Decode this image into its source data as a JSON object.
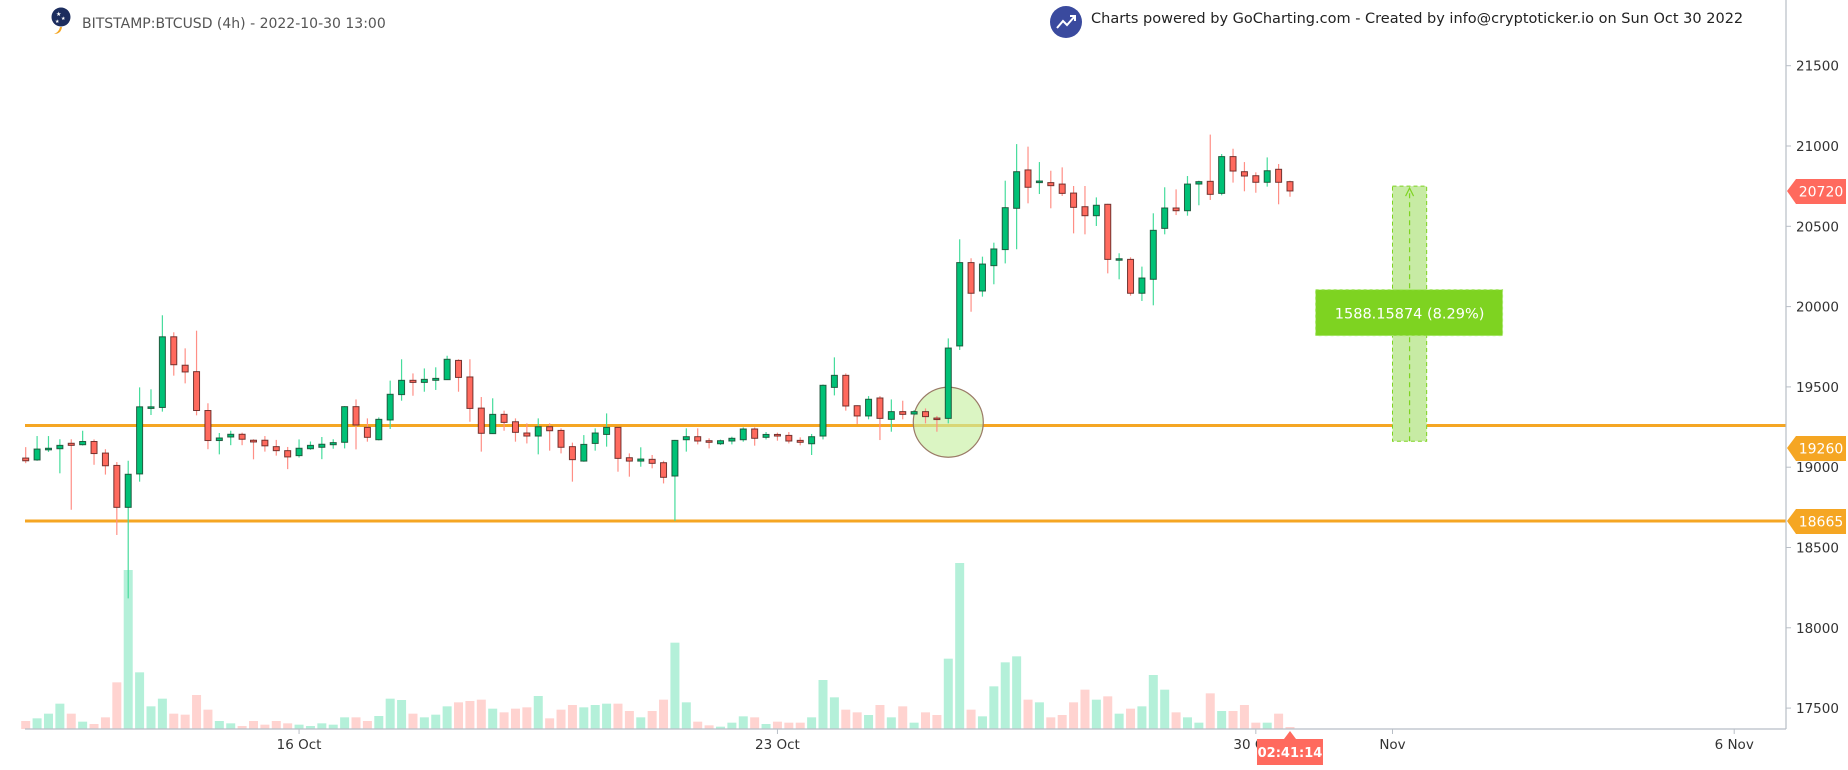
{
  "header": {
    "title": "BITSTAMP:BTCUSD (4h) - 2022-10-30 13:00",
    "credit": "Charts powered by GoCharting.com - Created by info@cryptoticker.io on Sun Oct 30 2022",
    "logo_icon": "cryptoticker-logo",
    "credit_icon": "gocharting-trend-icon"
  },
  "colors": {
    "up": "#00c176",
    "down": "#ff6a5e",
    "volume_up": "#b4f0d9",
    "volume_down": "#ffd3d0",
    "level_line": "#f5a623",
    "last_price": "#ff6a5e",
    "measure": "#7ed321",
    "highlight_circle": "#c8efa3"
  },
  "chart_data": {
    "type": "candlestick",
    "symbol": "BITSTAMP:BTCUSD",
    "interval": "4h",
    "ylim": [
      17350,
      21650
    ],
    "y_ticks": [
      17500,
      18000,
      18500,
      19000,
      19500,
      20000,
      20500,
      21000,
      21500
    ],
    "x_ticks": [
      {
        "label": "16 Oct",
        "date": "2022-10-16 00:00"
      },
      {
        "label": "23 Oct",
        "date": "2022-10-23 00:00"
      },
      {
        "label": "30 Oct",
        "date": "2022-10-30 00:00"
      },
      {
        "label": "Nov",
        "date": "2022-11-01 00:00"
      },
      {
        "label": "6 Nov",
        "date": "2022-11-06 00:00"
      }
    ],
    "columns": [
      "time",
      "open",
      "high",
      "low",
      "close",
      "volume_relative"
    ],
    "candles": [
      [
        "2022-10-12 00:00",
        19057,
        19125,
        19025,
        19040,
        24
      ],
      [
        "2022-10-12 04:00",
        19045,
        19194,
        19040,
        19113,
        32
      ],
      [
        "2022-10-12 08:00",
        19108,
        19194,
        19095,
        19118,
        46
      ],
      [
        "2022-10-12 12:00",
        19115,
        19174,
        18962,
        19136,
        76
      ],
      [
        "2022-10-12 16:00",
        19149,
        19174,
        18735,
        19136,
        46
      ],
      [
        "2022-10-12 20:00",
        19140,
        19227,
        19135,
        19160,
        22
      ],
      [
        "2022-10-13 00:00",
        19160,
        19173,
        19015,
        19085,
        15
      ],
      [
        "2022-10-13 04:00",
        19088,
        19112,
        18954,
        19009,
        35
      ],
      [
        "2022-10-13 08:00",
        19011,
        19032,
        18578,
        18750,
        140
      ],
      [
        "2022-10-13 12:00",
        18750,
        19040,
        18183,
        18956,
        477
      ],
      [
        "2022-10-13 16:00",
        18958,
        19497,
        18910,
        19376,
        170
      ],
      [
        "2022-10-13 20:00",
        19366,
        19485,
        19325,
        19376,
        68
      ],
      [
        "2022-10-14 00:00",
        19372,
        19946,
        19346,
        19812,
        91
      ],
      [
        "2022-10-14 04:00",
        19812,
        19840,
        19570,
        19638,
        46
      ],
      [
        "2022-10-14 08:00",
        19635,
        19740,
        19522,
        19593,
        43
      ],
      [
        "2022-10-14 12:00",
        19595,
        19850,
        19323,
        19353,
        102
      ],
      [
        "2022-10-14 16:00",
        19353,
        19398,
        19112,
        19166,
        58
      ],
      [
        "2022-10-14 20:00",
        19166,
        19213,
        19080,
        19182,
        24
      ],
      [
        "2022-10-15 00:00",
        19188,
        19227,
        19137,
        19205,
        17
      ],
      [
        "2022-10-15 04:00",
        19205,
        19215,
        19137,
        19174,
        9
      ],
      [
        "2022-10-15 08:00",
        19168,
        19174,
        19049,
        19157,
        24
      ],
      [
        "2022-10-15 12:00",
        19168,
        19194,
        19097,
        19133,
        13
      ],
      [
        "2022-10-15 16:00",
        19128,
        19170,
        19072,
        19103,
        24
      ],
      [
        "2022-10-15 20:00",
        19103,
        19126,
        18988,
        19064,
        17
      ],
      [
        "2022-10-16 00:00",
        19072,
        19173,
        19060,
        19118,
        13
      ],
      [
        "2022-10-16 04:00",
        19115,
        19160,
        19108,
        19136,
        9
      ],
      [
        "2022-10-16 08:00",
        19124,
        19188,
        19050,
        19143,
        17
      ],
      [
        "2022-10-16 12:00",
        19140,
        19174,
        19115,
        19153,
        13
      ],
      [
        "2022-10-16 16:00",
        19155,
        19380,
        19117,
        19377,
        35
      ],
      [
        "2022-10-16 20:00",
        19377,
        19422,
        19111,
        19263,
        35
      ],
      [
        "2022-10-17 00:00",
        19248,
        19304,
        19159,
        19186,
        24
      ],
      [
        "2022-10-17 04:00",
        19171,
        19310,
        19167,
        19298,
        39
      ],
      [
        "2022-10-17 08:00",
        19294,
        19539,
        19238,
        19454,
        91
      ],
      [
        "2022-10-17 12:00",
        19452,
        19672,
        19414,
        19541,
        87
      ],
      [
        "2022-10-17 16:00",
        19541,
        19584,
        19445,
        19528,
        46
      ],
      [
        "2022-10-17 20:00",
        19528,
        19615,
        19470,
        19547,
        35
      ],
      [
        "2022-10-18 00:00",
        19541,
        19622,
        19481,
        19553,
        43
      ],
      [
        "2022-10-18 04:00",
        19545,
        19694,
        19543,
        19672,
        68
      ],
      [
        "2022-10-18 08:00",
        19665,
        19672,
        19470,
        19559,
        80
      ],
      [
        "2022-10-18 12:00",
        19562,
        19672,
        19283,
        19366,
        84
      ],
      [
        "2022-10-18 16:00",
        19368,
        19437,
        19097,
        19211,
        88
      ],
      [
        "2022-10-18 20:00",
        19209,
        19429,
        19207,
        19329,
        61
      ],
      [
        "2022-10-19 00:00",
        19329,
        19352,
        19227,
        19279,
        50
      ],
      [
        "2022-10-19 04:00",
        19283,
        19304,
        19159,
        19217,
        61
      ],
      [
        "2022-10-19 08:00",
        19213,
        19273,
        19148,
        19194,
        65
      ],
      [
        "2022-10-19 12:00",
        19194,
        19304,
        19080,
        19252,
        99
      ],
      [
        "2022-10-19 16:00",
        19252,
        19273,
        19103,
        19227,
        32
      ],
      [
        "2022-10-19 20:00",
        19229,
        19242,
        19086,
        19124,
        58
      ],
      [
        "2022-10-20 00:00",
        19128,
        19153,
        18910,
        19047,
        72
      ],
      [
        "2022-10-20 04:00",
        19038,
        19200,
        19034,
        19142,
        65
      ],
      [
        "2022-10-20 08:00",
        19148,
        19242,
        19103,
        19213,
        72
      ],
      [
        "2022-10-20 12:00",
        19204,
        19335,
        19128,
        19248,
        76
      ],
      [
        "2022-10-20 16:00",
        19248,
        19252,
        18972,
        19055,
        76
      ],
      [
        "2022-10-20 20:00",
        19059,
        19086,
        18941,
        19038,
        54
      ],
      [
        "2022-10-21 00:00",
        19038,
        19124,
        19003,
        19051,
        35
      ],
      [
        "2022-10-21 04:00",
        19049,
        19076,
        18993,
        19024,
        54
      ],
      [
        "2022-10-21 08:00",
        19028,
        19040,
        18899,
        18937,
        88
      ],
      [
        "2022-10-21 12:00",
        18945,
        19170,
        18665,
        19167,
        259
      ],
      [
        "2022-10-21 16:00",
        19171,
        19242,
        19097,
        19190,
        80
      ],
      [
        "2022-10-21 20:00",
        19190,
        19242,
        19142,
        19163,
        22
      ],
      [
        "2022-10-22 00:00",
        19165,
        19180,
        19117,
        19155,
        11
      ],
      [
        "2022-10-22 04:00",
        19146,
        19172,
        19138,
        19165,
        7
      ],
      [
        "2022-10-22 08:00",
        19163,
        19190,
        19142,
        19180,
        19
      ],
      [
        "2022-10-22 12:00",
        19171,
        19248,
        19159,
        19238,
        38
      ],
      [
        "2022-10-22 16:00",
        19238,
        19248,
        19134,
        19180,
        35
      ],
      [
        "2022-10-22 20:00",
        19186,
        19219,
        19173,
        19204,
        15
      ],
      [
        "2022-10-23 00:00",
        19204,
        19215,
        19165,
        19194,
        22
      ],
      [
        "2022-10-23 04:00",
        19198,
        19219,
        19148,
        19163,
        19
      ],
      [
        "2022-10-23 08:00",
        19167,
        19186,
        19136,
        19155,
        19
      ],
      [
        "2022-10-23 12:00",
        19146,
        19207,
        19076,
        19190,
        35
      ],
      [
        "2022-10-23 16:00",
        19194,
        19515,
        19173,
        19510,
        147
      ],
      [
        "2022-10-23 20:00",
        19497,
        19684,
        19447,
        19572,
        95
      ],
      [
        "2022-10-24 00:00",
        19572,
        19584,
        19352,
        19381,
        58
      ],
      [
        "2022-10-24 04:00",
        19383,
        19385,
        19269,
        19319,
        50
      ],
      [
        "2022-10-24 08:00",
        19319,
        19443,
        19298,
        19423,
        42
      ],
      [
        "2022-10-24 12:00",
        19431,
        19443,
        19169,
        19304,
        72
      ],
      [
        "2022-10-24 16:00",
        19298,
        19422,
        19221,
        19346,
        35
      ],
      [
        "2022-10-24 20:00",
        19346,
        19414,
        19298,
        19329,
        68
      ],
      [
        "2022-10-25 00:00",
        19331,
        19356,
        19325,
        19346,
        19
      ],
      [
        "2022-10-25 04:00",
        19346,
        19366,
        19273,
        19315,
        50
      ],
      [
        "2022-10-25 08:00",
        19306,
        19319,
        19221,
        19298,
        42
      ],
      [
        "2022-10-25 12:00",
        19304,
        19802,
        19273,
        19742,
        211
      ],
      [
        "2022-10-25 16:00",
        19755,
        20419,
        19730,
        20274,
        498
      ],
      [
        "2022-10-25 20:00",
        20274,
        20301,
        19968,
        20083,
        58
      ],
      [
        "2022-10-26 00:00",
        20097,
        20311,
        20062,
        20265,
        38
      ],
      [
        "2022-10-26 04:00",
        20255,
        20398,
        20139,
        20359,
        128
      ],
      [
        "2022-10-26 08:00",
        20355,
        20784,
        20269,
        20616,
        200
      ],
      [
        "2022-10-26 12:00",
        20612,
        21012,
        20357,
        20840,
        218
      ],
      [
        "2022-10-26 16:00",
        20851,
        20996,
        20643,
        20743,
        88
      ],
      [
        "2022-10-26 20:00",
        20772,
        20900,
        20701,
        20782,
        80
      ],
      [
        "2022-10-27 00:00",
        20772,
        20846,
        20612,
        20753,
        35
      ],
      [
        "2022-10-27 04:00",
        20763,
        20867,
        20689,
        20705,
        42
      ],
      [
        "2022-10-27 08:00",
        20707,
        20751,
        20456,
        20618,
        80
      ],
      [
        "2022-10-27 12:00",
        20622,
        20751,
        20450,
        20566,
        118
      ],
      [
        "2022-10-27 16:00",
        20566,
        20680,
        20502,
        20631,
        88
      ],
      [
        "2022-10-27 20:00",
        20637,
        20640,
        20207,
        20294,
        98
      ],
      [
        "2022-10-28 00:00",
        20290,
        20332,
        20170,
        20298,
        46
      ],
      [
        "2022-10-28 04:00",
        20294,
        20307,
        20068,
        20083,
        61
      ],
      [
        "2022-10-28 08:00",
        20083,
        20249,
        20035,
        20178,
        68
      ],
      [
        "2022-10-28 12:00",
        20170,
        20581,
        20008,
        20475,
        162
      ],
      [
        "2022-10-28 16:00",
        20487,
        20743,
        20450,
        20614,
        118
      ],
      [
        "2022-10-28 20:00",
        20614,
        20730,
        20570,
        20597,
        50
      ],
      [
        "2022-10-29 00:00",
        20597,
        20813,
        20566,
        20763,
        35
      ],
      [
        "2022-10-29 04:00",
        20763,
        20784,
        20631,
        20778,
        19
      ],
      [
        "2022-10-29 08:00",
        20780,
        21071,
        20664,
        20699,
        107
      ],
      [
        "2022-10-29 12:00",
        20705,
        20950,
        20693,
        20934,
        54
      ],
      [
        "2022-10-29 16:00",
        20934,
        20983,
        20772,
        20844,
        54
      ],
      [
        "2022-10-29 20:00",
        20840,
        20900,
        20718,
        20813,
        72
      ],
      [
        "2022-10-30 00:00",
        20815,
        20836,
        20709,
        20774,
        19
      ],
      [
        "2022-10-30 04:00",
        20774,
        20929,
        20747,
        20846,
        19
      ],
      [
        "2022-10-30 08:00",
        20855,
        20888,
        20637,
        20774,
        46
      ],
      [
        "2022-10-30 12:00",
        20778,
        20784,
        20684,
        20720,
        6
      ]
    ],
    "horizontal_levels": [
      {
        "price": 19260,
        "label": "19260"
      },
      {
        "price": 18665,
        "label": "18665"
      }
    ],
    "last_price": {
      "price": 20720,
      "label": "20720"
    },
    "countdown": "02:41:14",
    "measure": {
      "from_price": 19161.84,
      "to_price": 20750,
      "from_time": "2022-11-01 00:00",
      "to_time": "2022-11-01 12:00",
      "label": "1588.15874 (8.29%)"
    },
    "highlight_circle": {
      "time": "2022-10-25 12:00",
      "price": 19280
    }
  }
}
